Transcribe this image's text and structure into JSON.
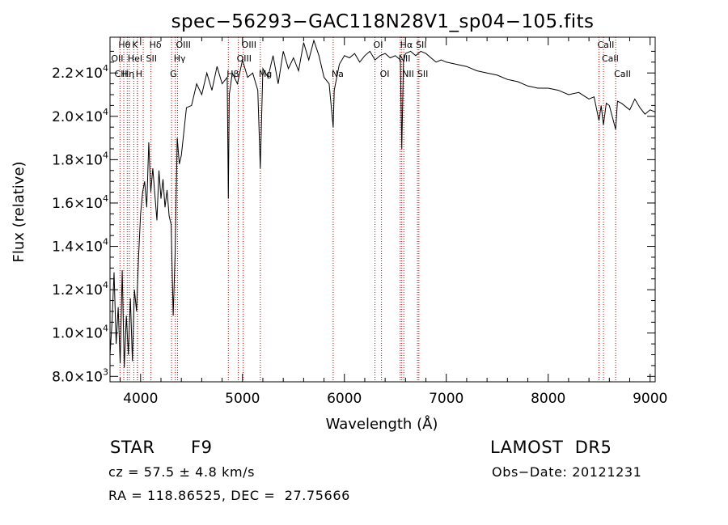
{
  "chart_data": {
    "type": "line",
    "title": "spec−56293−GAC118N28V1_sp04−105.fits",
    "xlabel": "Wavelength (Å)",
    "ylabel": "Flux (relative)",
    "xlim": [
      3700,
      9050
    ],
    "ylim": [
      7750,
      23650
    ],
    "x_ticks": [
      4000,
      5000,
      6000,
      7000,
      8000,
      9000
    ],
    "y_ticks": [
      {
        "value": 8000,
        "mantissa": "8.0",
        "exp": "3"
      },
      {
        "value": 10000,
        "mantissa": "1.0",
        "exp": "4"
      },
      {
        "value": 12000,
        "mantissa": "1.2",
        "exp": "4"
      },
      {
        "value": 14000,
        "mantissa": "1.4",
        "exp": "4"
      },
      {
        "value": 16000,
        "mantissa": "1.6",
        "exp": "4"
      },
      {
        "value": 18000,
        "mantissa": "1.8",
        "exp": "4"
      },
      {
        "value": 20000,
        "mantissa": "2.0",
        "exp": "4"
      },
      {
        "value": 22000,
        "mantissa": "2.2",
        "exp": "4"
      }
    ],
    "series": [
      {
        "color": "#000000",
        "x": [
          3700,
          3720,
          3740,
          3760,
          3780,
          3800,
          3820,
          3840,
          3860,
          3880,
          3900,
          3920,
          3940,
          3960,
          3980,
          4000,
          4020,
          4040,
          4060,
          4080,
          4100,
          4120,
          4140,
          4160,
          4180,
          4200,
          4220,
          4240,
          4260,
          4280,
          4300,
          4320,
          4340,
          4360,
          4380,
          4400,
          4450,
          4500,
          4550,
          4600,
          4650,
          4700,
          4750,
          4800,
          4850,
          4861,
          4870,
          4900,
          4950,
          5000,
          5050,
          5100,
          5150,
          5175,
          5200,
          5250,
          5300,
          5350,
          5400,
          5450,
          5500,
          5550,
          5600,
          5650,
          5700,
          5750,
          5800,
          5850,
          5890,
          5900,
          5950,
          6000,
          6050,
          6100,
          6150,
          6200,
          6250,
          6300,
          6350,
          6400,
          6450,
          6500,
          6550,
          6563,
          6580,
          6600,
          6650,
          6700,
          6750,
          6800,
          6850,
          6900,
          6950,
          7000,
          7100,
          7200,
          7300,
          7400,
          7500,
          7600,
          7700,
          7800,
          7900,
          8000,
          8100,
          8200,
          8300,
          8400,
          8450,
          8498,
          8520,
          8542,
          8570,
          8600,
          8662,
          8680,
          8720,
          8800,
          8850,
          8900,
          8950,
          9000,
          9050
        ],
        "y": [
          9000,
          10500,
          12800,
          9500,
          11200,
          8600,
          12900,
          8400,
          10800,
          9000,
          11600,
          8700,
          12000,
          11000,
          13500,
          15500,
          16500,
          17000,
          15800,
          18800,
          16500,
          17600,
          16400,
          15200,
          17500,
          16200,
          17100,
          15800,
          16600,
          15400,
          15000,
          10800,
          13800,
          19000,
          17800,
          18200,
          20400,
          20500,
          21500,
          21000,
          22000,
          21200,
          22300,
          21500,
          21800,
          16200,
          21000,
          22000,
          21500,
          22600,
          21800,
          22000,
          21200,
          17600,
          22200,
          21800,
          22800,
          21500,
          23000,
          22200,
          22700,
          22100,
          23400,
          22600,
          23500,
          22800,
          21800,
          21500,
          19500,
          21200,
          22400,
          22800,
          22700,
          22900,
          22500,
          22800,
          23000,
          22600,
          22800,
          22900,
          22700,
          22800,
          22600,
          18500,
          22500,
          22900,
          23000,
          22800,
          23000,
          22900,
          22700,
          22500,
          22600,
          22500,
          22400,
          22300,
          22100,
          22000,
          21900,
          21700,
          21600,
          21400,
          21300,
          21300,
          21200,
          21000,
          21100,
          20800,
          20900,
          19800,
          20500,
          19600,
          20600,
          20500,
          19400,
          20700,
          20600,
          20300,
          20800,
          20400,
          20100,
          20300,
          20200
        ]
      }
    ],
    "line_markers": {
      "color": "#c00000",
      "wavelengths": [
        3798,
        3835,
        3869,
        3889,
        3933,
        3968,
        3970,
        4026,
        4102,
        4304,
        4341,
        4363,
        4861,
        4959,
        5007,
        5175,
        5890,
        6300,
        6364,
        6548,
        6563,
        6583,
        6717,
        6731,
        8498,
        8542,
        8662
      ]
    },
    "line_labels": [
      {
        "text": "Hθ",
        "x": 3798,
        "row": 0
      },
      {
        "text": "K",
        "x": 3933,
        "row": 0
      },
      {
        "text": "Hδ",
        "x": 4102,
        "row": 0
      },
      {
        "text": "OIII",
        "x": 4363,
        "row": 0
      },
      {
        "text": "OIII",
        "x": 5007,
        "row": 0
      },
      {
        "text": "OI",
        "x": 6300,
        "row": 0
      },
      {
        "text": "Hα",
        "x": 6563,
        "row": 0
      },
      {
        "text": "SII",
        "x": 6717,
        "row": 0
      },
      {
        "text": "CaII",
        "x": 8498,
        "row": 0
      },
      {
        "text": "OII",
        "x": 3727,
        "row": 1
      },
      {
        "text": "HeI",
        "x": 3889,
        "row": 1
      },
      {
        "text": "SII",
        "x": 4069,
        "row": 1
      },
      {
        "text": "Hγ",
        "x": 4341,
        "row": 1
      },
      {
        "text": "OIII",
        "x": 4959,
        "row": 1
      },
      {
        "text": "NII",
        "x": 6548,
        "row": 1
      },
      {
        "text": "CaII",
        "x": 8542,
        "row": 1
      },
      {
        "text": "CH",
        "x": 3760,
        "row": 2
      },
      {
        "text": "Hη",
        "x": 3835,
        "row": 2
      },
      {
        "text": "H",
        "x": 3968,
        "row": 2
      },
      {
        "text": "G",
        "x": 4304,
        "row": 2
      },
      {
        "text": "Hβ",
        "x": 4861,
        "row": 2
      },
      {
        "text": "Mg",
        "x": 5175,
        "row": 2
      },
      {
        "text": "Na",
        "x": 5890,
        "row": 2
      },
      {
        "text": "OI",
        "x": 6364,
        "row": 2
      },
      {
        "text": "NII",
        "x": 6583,
        "row": 2
      },
      {
        "text": "SII",
        "x": 6731,
        "row": 2
      },
      {
        "text": "CaII",
        "x": 8662,
        "row": 2
      }
    ]
  },
  "info": {
    "class_label": "STAR",
    "subclass": "F9",
    "survey": "LAMOST  DR5",
    "redshift": "cz = 57.5 ± 4.8 km/s",
    "obs_date": "Obs−Date: 20121231",
    "coords": "RA = 118.86525, DEC =  27.75666"
  }
}
